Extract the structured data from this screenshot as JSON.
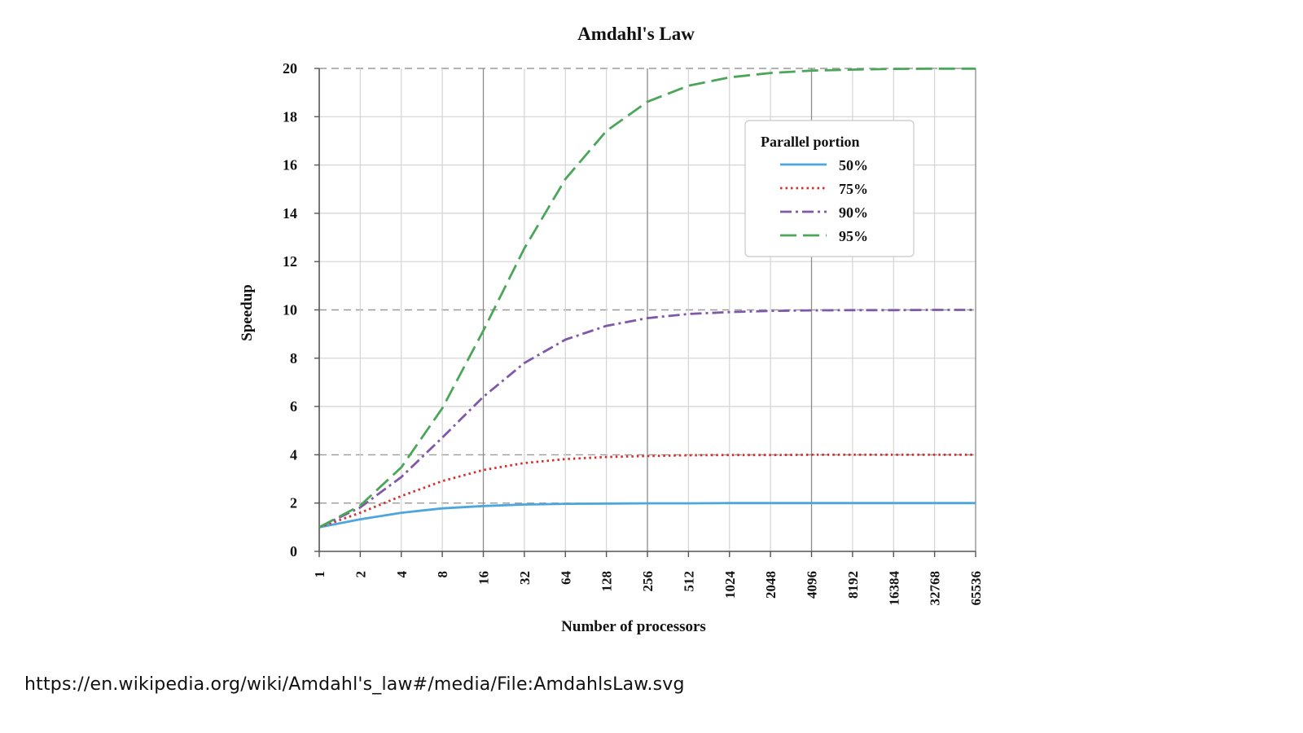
{
  "source_caption": "https://en.wikipedia.org/wiki/Amdahl's_law#/media/File:AmdahlsLaw.svg",
  "chart_data": {
    "type": "line",
    "title": "Amdahl's Law",
    "xlabel": "Number of processors",
    "ylabel": "Speedup",
    "x_scale": "log2",
    "x": [
      1,
      2,
      4,
      8,
      16,
      32,
      64,
      128,
      256,
      512,
      1024,
      2048,
      4096,
      8192,
      16384,
      32768,
      65536
    ],
    "x_tick_labels": [
      "1",
      "2",
      "4",
      "8",
      "16",
      "32",
      "64",
      "128",
      "256",
      "512",
      "1024",
      "2048",
      "4096",
      "8192",
      "16384",
      "32768",
      "65536"
    ],
    "ylim": [
      0,
      20
    ],
    "y_ticks": [
      0,
      2,
      4,
      6,
      8,
      10,
      12,
      14,
      16,
      18,
      20
    ],
    "grid": true,
    "legend": {
      "title": "Parallel portion",
      "position": "top-right"
    },
    "series": [
      {
        "name": "50%",
        "color": "#4da6dd",
        "dash": "solid",
        "values": [
          1.0,
          1.33,
          1.6,
          1.78,
          1.88,
          1.94,
          1.97,
          1.98,
          1.99,
          1.99,
          2.0,
          2.0,
          2.0,
          2.0,
          2.0,
          2.0,
          2.0
        ]
      },
      {
        "name": "75%",
        "color": "#d62d2d",
        "dash": "dotted",
        "values": [
          1.0,
          1.6,
          2.29,
          2.91,
          3.37,
          3.66,
          3.82,
          3.91,
          3.95,
          3.98,
          3.99,
          3.99,
          4.0,
          4.0,
          4.0,
          4.0,
          4.0
        ]
      },
      {
        "name": "90%",
        "color": "#8058a8",
        "dash": "dashdot",
        "values": [
          1.0,
          1.82,
          3.08,
          4.71,
          6.4,
          7.8,
          8.77,
          9.34,
          9.66,
          9.83,
          9.91,
          9.96,
          9.98,
          9.99,
          9.99,
          10.0,
          10.0
        ]
      },
      {
        "name": "95%",
        "color": "#4ca65a",
        "dash": "dashed",
        "values": [
          1.0,
          1.9,
          3.48,
          5.93,
          9.14,
          12.55,
          15.42,
          17.41,
          18.62,
          19.28,
          19.63,
          19.81,
          19.91,
          19.95,
          19.98,
          19.99,
          19.99
        ]
      }
    ]
  }
}
